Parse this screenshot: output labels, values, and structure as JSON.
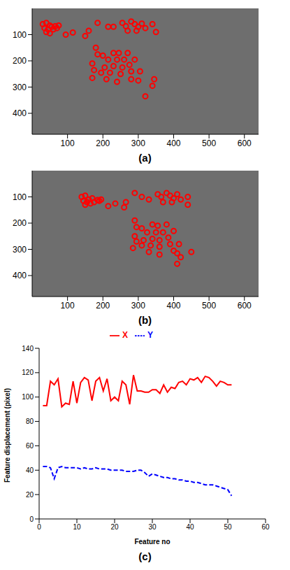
{
  "chart_data": [
    {
      "type": "scatter",
      "title": "(a)",
      "color": "#ff0000",
      "marker": "circle",
      "grid": false,
      "xlim": [
        0,
        640
      ],
      "xticks": [
        100,
        200,
        300,
        400,
        500,
        600
      ],
      "ylim": [
        480,
        0
      ],
      "yticks": [
        100,
        200,
        300,
        400
      ],
      "x": [
        30,
        40,
        50,
        35,
        45,
        55,
        65,
        75,
        60,
        40,
        50,
        70,
        95,
        115,
        150,
        160,
        185,
        215,
        230,
        255,
        265,
        280,
        290,
        300,
        310,
        320,
        340,
        350,
        270,
        295,
        180,
        185,
        200,
        170,
        175,
        230,
        245,
        270,
        215,
        240,
        260,
        290,
        205,
        230,
        255,
        275,
        195,
        220,
        250,
        280,
        305,
        170,
        210,
        240,
        280,
        300,
        345,
        340,
        320
      ],
      "values": [
        60,
        55,
        65,
        75,
        80,
        70,
        68,
        65,
        80,
        90,
        95,
        75,
        100,
        92,
        105,
        85,
        55,
        70,
        70,
        55,
        68,
        50,
        60,
        70,
        58,
        75,
        60,
        90,
        85,
        85,
        150,
        175,
        180,
        210,
        235,
        170,
        170,
        170,
        195,
        195,
        195,
        195,
        225,
        220,
        225,
        215,
        245,
        245,
        250,
        240,
        240,
        265,
        270,
        280,
        270,
        275,
        270,
        295,
        335
      ]
    },
    {
      "type": "scatter",
      "title": "(b)",
      "color": "#ff0000",
      "marker": "circle",
      "grid": false,
      "xlim": [
        0,
        640
      ],
      "xticks": [
        100,
        200,
        300,
        400,
        500,
        600
      ],
      "ylim": [
        480,
        0
      ],
      "yticks": [
        100,
        200,
        300,
        400
      ],
      "x": [
        140,
        150,
        160,
        145,
        155,
        170,
        185,
        195,
        165,
        150,
        175,
        190,
        215,
        235,
        260,
        265,
        290,
        310,
        330,
        355,
        365,
        380,
        390,
        400,
        410,
        420,
        440,
        440,
        370,
        395,
        290,
        295,
        310,
        290,
        295,
        340,
        355,
        380,
        325,
        350,
        370,
        400,
        315,
        340,
        360,
        385,
        310,
        335,
        360,
        390,
        415,
        285,
        330,
        360,
        400,
        410,
        450,
        420,
        410
      ],
      "values": [
        100,
        95,
        110,
        115,
        120,
        105,
        112,
        110,
        125,
        130,
        120,
        115,
        135,
        125,
        140,
        120,
        85,
        100,
        110,
        90,
        100,
        85,
        95,
        105,
        90,
        110,
        100,
        130,
        120,
        120,
        190,
        215,
        220,
        250,
        270,
        205,
        210,
        205,
        235,
        235,
        235,
        230,
        265,
        260,
        265,
        255,
        285,
        285,
        290,
        280,
        280,
        295,
        310,
        320,
        305,
        315,
        310,
        330,
        355
      ]
    },
    {
      "type": "line",
      "title": "(c)",
      "x_label": "Feature no",
      "y_label": "Feature displacement (pixel)",
      "legend": "top",
      "grid": false,
      "xlim": [
        0,
        60
      ],
      "xticks": [
        0,
        10,
        20,
        30,
        40,
        50,
        60
      ],
      "ylim": [
        0,
        140
      ],
      "yticks": [
        0,
        20,
        40,
        60,
        80,
        100,
        120,
        140
      ],
      "x": [
        1,
        2,
        3,
        4,
        5,
        6,
        7,
        8,
        9,
        10,
        11,
        12,
        13,
        14,
        15,
        16,
        17,
        18,
        19,
        20,
        21,
        22,
        23,
        24,
        25,
        26,
        27,
        28,
        29,
        30,
        31,
        32,
        33,
        34,
        35,
        36,
        37,
        38,
        39,
        40,
        41,
        42,
        43,
        44,
        45,
        46,
        47,
        48,
        49,
        50,
        51
      ],
      "series": [
        {
          "name": "X",
          "color": "#ff0000",
          "line_style": "solid",
          "values": [
            93,
            93,
            113,
            110,
            115,
            92,
            95,
            94,
            113,
            95,
            112,
            116,
            114,
            97,
            113,
            116,
            105,
            115,
            97,
            100,
            97,
            113,
            110,
            94,
            118,
            105,
            105,
            104,
            104,
            106,
            106,
            103,
            110,
            104,
            108,
            107,
            112,
            113,
            110,
            115,
            114,
            116,
            112,
            117,
            116,
            113,
            109,
            113,
            112,
            110,
            110
          ]
        },
        {
          "name": "Y",
          "color": "#0000ff",
          "line_style": "dashed",
          "values": [
            43,
            43,
            42,
            33,
            42,
            43,
            42,
            42,
            42,
            42,
            41,
            42,
            41,
            41,
            42,
            41,
            41,
            41,
            40,
            40,
            40,
            40,
            39,
            39,
            39,
            40,
            40,
            38,
            35,
            37,
            36,
            35,
            34,
            34,
            33,
            33,
            32,
            32,
            31,
            31,
            30,
            30,
            29,
            28,
            28,
            28,
            27,
            26,
            25,
            24,
            19
          ]
        }
      ]
    }
  ]
}
